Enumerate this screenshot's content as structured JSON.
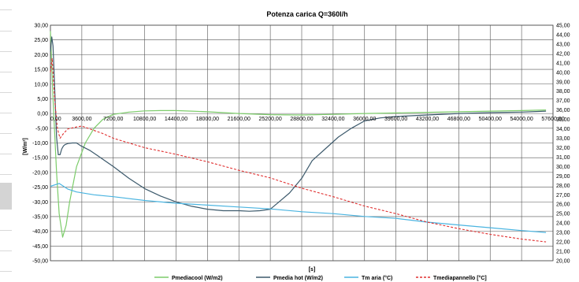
{
  "chart_data": {
    "type": "line",
    "title": "Potenza carica  Q=360l/h",
    "xlabel": "[s]",
    "ylabel": "[W/m²]",
    "xlim": [
      0,
      57600
    ],
    "ylim": [
      -50,
      30
    ],
    "y2lim": [
      20,
      45
    ],
    "x_ticks": [
      "0,00",
      "3600,00",
      "7200,00",
      "10800,00",
      "14400,00",
      "18000,00",
      "21600,00",
      "25200,00",
      "28800,00",
      "32400,00",
      "36000,00",
      "39600,00",
      "43200,00",
      "46800,00",
      "50400,00",
      "54000,00",
      "57600,00"
    ],
    "y_ticks": [
      "30,00",
      "25,00",
      "20,00",
      "15,00",
      "10,00",
      "5,00",
      "0,00",
      "-5,00",
      "-10,00",
      "-15,00",
      "-20,00",
      "-25,00",
      "-30,00",
      "-35,00",
      "-40,00",
      "-45,00",
      "-50,00"
    ],
    "y2_ticks": [
      "45,00",
      "44,00",
      "43,00",
      "42,00",
      "41,00",
      "40,00",
      "39,00",
      "38,00",
      "37,00",
      "36,00",
      "35,00",
      "34,00",
      "33,00",
      "32,00",
      "31,00",
      "30,00",
      "29,00",
      "28,00",
      "27,00",
      "26,00",
      "25,00",
      "24,00",
      "23,00",
      "22,00",
      "21,00",
      "20,00"
    ],
    "grid": true,
    "legend_position": "bottom",
    "series": [
      {
        "name": "Pmediacool (W/m2)",
        "color": "#7ccc6a",
        "style": "solid",
        "axis": "left",
        "x": [
          0,
          300,
          700,
          1000,
          1400,
          1800,
          2200,
          3000,
          4000,
          5000,
          6000,
          7200,
          9000,
          10800,
          12600,
          14400,
          16200,
          18000,
          19800,
          21600,
          25200,
          28800,
          32400,
          36000,
          39600,
          43200,
          46800,
          50400,
          54000,
          56800
        ],
        "y": [
          28,
          5,
          -20,
          -34,
          -42,
          -38,
          -30,
          -18,
          -10,
          -5,
          -2,
          -0.3,
          0.5,
          0.9,
          1,
          1,
          0.8,
          0.6,
          0.3,
          0,
          -0.4,
          -0.5,
          -0.3,
          0,
          0.2,
          0.4,
          0.6,
          0.8,
          1,
          1.2
        ]
      },
      {
        "name": "Pmedia hot (W/m2)",
        "color": "#3d5a6c",
        "style": "solid",
        "axis": "left",
        "x": [
          0,
          150,
          300,
          500,
          700,
          900,
          1100,
          1300,
          1500,
          1700,
          2000,
          2500,
          3000,
          3500,
          4500,
          5500,
          7200,
          9000,
          10800,
          12600,
          14400,
          16200,
          18000,
          19800,
          21600,
          22800,
          24000,
          25200,
          26200,
          27400,
          28800,
          30000,
          31500,
          33000,
          34500,
          36000,
          37800,
          39600,
          43200,
          46800,
          50400,
          54000,
          56800
        ],
        "y": [
          21,
          26,
          23,
          8,
          -8,
          -14,
          -14,
          -12,
          -11,
          -10.5,
          -10.2,
          -10,
          -10,
          -11,
          -12.5,
          -14.5,
          -18,
          -22,
          -25.5,
          -28,
          -30,
          -31.5,
          -32.5,
          -33,
          -33,
          -33.2,
          -33,
          -32.5,
          -30,
          -27,
          -22,
          -16,
          -12,
          -8,
          -5,
          -2.5,
          -1.5,
          -1,
          -0.5,
          0,
          0.3,
          0.5,
          0.8
        ]
      },
      {
        "name": "Tm aria (°C)",
        "color": "#4ab4e0",
        "style": "solid",
        "axis": "right",
        "x": [
          0,
          1000,
          2000,
          3000,
          5000,
          7200,
          10800,
          14400,
          18000,
          21600,
          25200,
          28800,
          32400,
          36000,
          39600,
          43200,
          46800,
          50400,
          54000,
          56800
        ],
        "y": [
          27.9,
          28.2,
          27.6,
          27.3,
          27.0,
          26.8,
          26.4,
          26.1,
          25.9,
          25.7,
          25.5,
          25.2,
          25.0,
          24.7,
          24.5,
          24.1,
          23.8,
          23.5,
          23.2,
          23.0
        ]
      },
      {
        "name": "Tmediapannello [°C]",
        "color": "#e03030",
        "style": "dashed",
        "axis": "right",
        "x": [
          0,
          200,
          500,
          800,
          1100,
          1500,
          2000,
          2500,
          3000,
          3600,
          4500,
          6000,
          7200,
          10800,
          14400,
          18000,
          21600,
          25200,
          28800,
          32400,
          36000,
          39600,
          43200,
          46800,
          50400,
          54000,
          56800
        ],
        "y": [
          40,
          41.5,
          37,
          34,
          33,
          33.5,
          34,
          34.1,
          34.2,
          34.3,
          34,
          33.5,
          33,
          32,
          31.3,
          30.5,
          29.6,
          28.8,
          27.7,
          26.8,
          25.8,
          25,
          24.1,
          23.4,
          22.8,
          22.3,
          22
        ]
      }
    ]
  }
}
